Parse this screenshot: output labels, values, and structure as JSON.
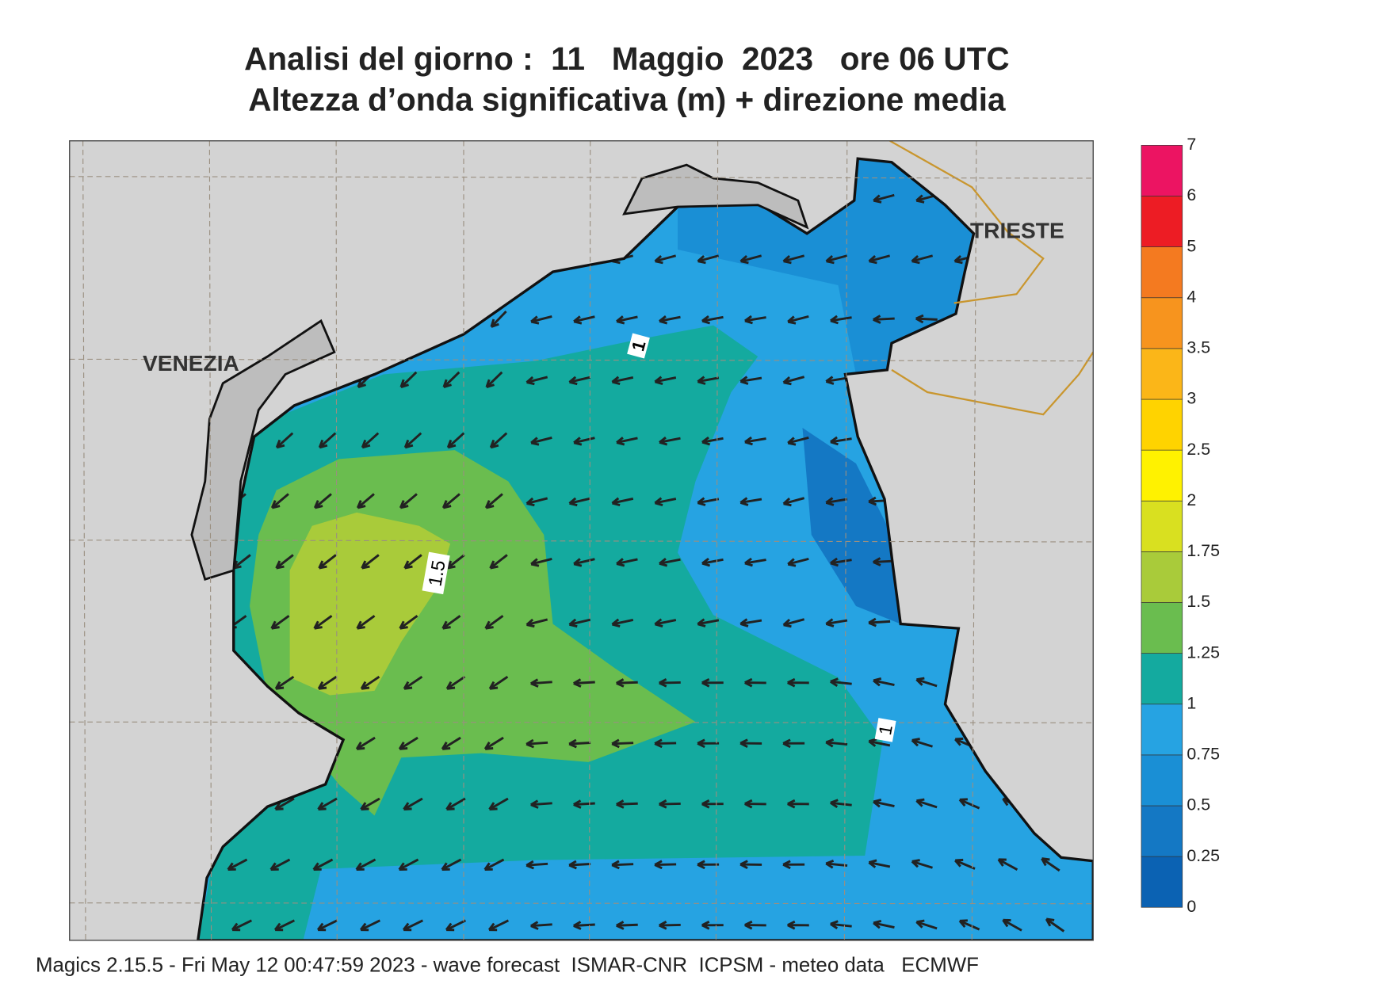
{
  "title": "Analisi del giorno :  11   Maggio  2023   ore 06 UTC",
  "subtitle": "Altezza d’onda significativa (m) + direzione media",
  "places": [
    "VENEZIA",
    "TRIESTE"
  ],
  "contour_labels": [
    1,
    1.5,
    1
  ],
  "colorbar": {
    "levels": [
      0,
      0.25,
      0.5,
      0.75,
      1,
      1.25,
      1.5,
      1.75,
      2,
      2.5,
      3,
      3.5,
      4,
      5,
      6,
      7
    ],
    "colors": [
      "#0b62b3",
      "#1478c4",
      "#1a8fd5",
      "#26a3e2",
      "#14aa9f",
      "#6abd4f",
      "#a9cb3a",
      "#d9e020",
      "#fff200",
      "#ffd300",
      "#fbb618",
      "#f7941e",
      "#f47a20",
      "#ed1c24",
      "#ec1462"
    ]
  },
  "footer": "Magics 2.15.5 - Fri May 12 00:47:59 2023 - wave forecast  ISMAR-CNR  ICPSM - meteo data   ECMWF"
}
